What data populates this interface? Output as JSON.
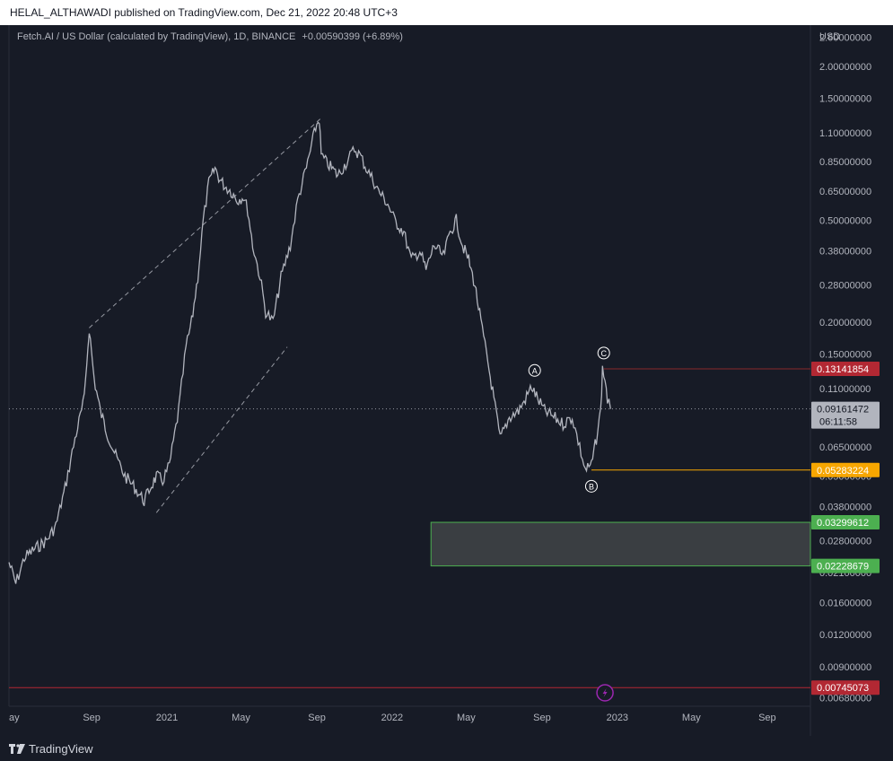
{
  "header": {
    "published_line": "HELAL_ALTHAWADI published on TradingView.com, Dec 21, 2022 20:48 UTC+3"
  },
  "legend": {
    "text": "Fetch.AI / US Dollar (calculated by TradingView), 1D, BINANCE",
    "change": "+0.00590399 (+6.89%)"
  },
  "footer": {
    "brand": "TradingView",
    "logo_icon": "tradingview-logo-icon"
  },
  "chart_data": {
    "type": "line",
    "title": "Fetch.AI / US Dollar (calculated by TradingView), 1D, BINANCE",
    "currency_label": "USD",
    "y_scale": "log",
    "ylim": [
      0.0063,
      2.9
    ],
    "y_ticks": [
      "2.60000000",
      "2.00000000",
      "1.50000000",
      "1.10000000",
      "0.85000000",
      "0.65000000",
      "0.50000000",
      "0.38000000",
      "0.28000000",
      "0.20000000",
      "0.15000000",
      "0.11000000",
      "0.08400000",
      "0.06500000",
      "0.05000000",
      "0.03800000",
      "0.02800000",
      "0.02100000",
      "0.01600000",
      "0.01200000",
      "0.00900000",
      "0.00680000"
    ],
    "x_ticks": [
      "May",
      "Sep",
      "2021",
      "May",
      "Sep",
      "2022",
      "May",
      "Sep",
      "2023",
      "May",
      "Sep"
    ],
    "x_ticks_first_label": "ay",
    "xlim": [
      "2020-04-20",
      "2023-11-10"
    ],
    "x_tick_dates": [
      "2020-05-01",
      "2020-09-01",
      "2021-01-01",
      "2021-05-01",
      "2021-09-01",
      "2022-01-01",
      "2022-05-01",
      "2022-09-01",
      "2023-01-01",
      "2023-05-01",
      "2023-09-01"
    ],
    "series": [
      {
        "x": [
          "2020-04-20",
          "2020-05-01",
          "2020-05-15",
          "2020-06-01",
          "2020-06-20",
          "2020-07-05",
          "2020-07-20",
          "2020-08-05",
          "2020-08-20",
          "2020-08-28",
          "2020-09-05",
          "2020-09-15",
          "2020-09-25",
          "2020-10-10",
          "2020-10-25",
          "2020-11-10",
          "2020-11-25",
          "2020-12-05",
          "2020-12-15",
          "2020-12-25",
          "2021-01-05",
          "2021-01-20",
          "2021-02-01",
          "2021-02-10",
          "2021-02-20",
          "2021-03-01",
          "2021-03-10",
          "2021-03-20",
          "2021-03-28",
          "2021-04-05",
          "2021-04-15",
          "2021-04-25",
          "2021-05-05",
          "2021-05-12",
          "2021-05-20",
          "2021-06-01",
          "2021-06-10",
          "2021-06-22",
          "2021-07-05",
          "2021-07-20",
          "2021-08-01",
          "2021-08-15",
          "2021-08-30",
          "2021-09-05",
          "2021-09-08",
          "2021-09-15",
          "2021-09-25",
          "2021-10-05",
          "2021-10-20",
          "2021-11-01",
          "2021-11-10",
          "2021-11-20",
          "2021-12-01",
          "2021-12-10",
          "2021-12-25",
          "2022-01-05",
          "2022-01-20",
          "2022-02-01",
          "2022-02-15",
          "2022-02-25",
          "2022-03-10",
          "2022-03-25",
          "2022-04-05",
          "2022-04-15",
          "2022-04-25",
          "2022-05-05",
          "2022-05-15",
          "2022-05-25",
          "2022-06-05",
          "2022-06-15",
          "2022-06-25",
          "2022-07-10",
          "2022-07-25",
          "2022-08-05",
          "2022-08-15",
          "2022-08-25",
          "2022-09-05",
          "2022-09-20",
          "2022-10-05",
          "2022-10-20",
          "2022-11-01",
          "2022-11-10",
          "2022-11-20",
          "2022-11-28",
          "2022-12-05",
          "2022-12-08",
          "2022-12-12",
          "2022-12-16",
          "2022-12-21"
        ],
        "values": [
          0.023,
          0.019,
          0.024,
          0.026,
          0.028,
          0.032,
          0.045,
          0.07,
          0.1,
          0.19,
          0.12,
          0.09,
          0.075,
          0.06,
          0.05,
          0.045,
          0.04,
          0.045,
          0.05,
          0.048,
          0.055,
          0.09,
          0.16,
          0.2,
          0.3,
          0.5,
          0.7,
          0.8,
          0.72,
          0.68,
          0.65,
          0.6,
          0.62,
          0.55,
          0.4,
          0.3,
          0.22,
          0.2,
          0.3,
          0.4,
          0.6,
          0.8,
          1.15,
          1.25,
          0.9,
          0.85,
          0.8,
          0.75,
          0.85,
          0.95,
          0.9,
          0.8,
          0.72,
          0.65,
          0.58,
          0.5,
          0.45,
          0.35,
          0.38,
          0.32,
          0.4,
          0.36,
          0.45,
          0.5,
          0.4,
          0.35,
          0.28,
          0.2,
          0.14,
          0.1,
          0.07,
          0.085,
          0.09,
          0.1,
          0.112,
          0.1,
          0.09,
          0.085,
          0.08,
          0.085,
          0.065,
          0.0528,
          0.055,
          0.07,
          0.09,
          0.131,
          0.12,
          0.1,
          0.0916
        ]
      }
    ],
    "trend_channel": {
      "upper": [
        [
          "2020-08-28",
          0.19
        ],
        [
          "2021-09-07",
          1.25
        ]
      ],
      "lower": [
        [
          "2020-12-15",
          0.036
        ],
        [
          "2021-07-15",
          0.16
        ]
      ]
    },
    "wave_labels": [
      {
        "label": "A",
        "x": "2022-08-20",
        "value": 0.112
      },
      {
        "label": "B",
        "x": "2022-11-20",
        "value": 0.0528
      },
      {
        "label": "C",
        "x": "2022-12-10",
        "value": 0.131
      }
    ],
    "horizontal_lines": [
      {
        "value": 0.13141854,
        "color": "#8a2a2a",
        "x_start": "2022-12-10"
      },
      {
        "value": 0.05283224,
        "color": "#f7a600",
        "x_start": "2022-11-20"
      },
      {
        "value": 0.00745073,
        "color": "#b22833",
        "x_start": "2020-04-20"
      },
      {
        "value": 0.09161472,
        "color": "#9598a1",
        "dotted": true,
        "x_start": "2020-04-20"
      }
    ],
    "zone": {
      "top": 0.03299612,
      "bottom": 0.02228679,
      "x_start": "2022-03-05",
      "fill": "#3a3e42",
      "border": "#4caf50"
    },
    "price_labels": [
      {
        "text": "0.13141854",
        "value": 0.13141854,
        "bg": "#b22833"
      },
      {
        "text": "0.09161472",
        "value": 0.09161472,
        "bg": "#b2b5be",
        "sub": "06:11:58"
      },
      {
        "text": "0.05283224",
        "value": 0.05283224,
        "bg": "#f7a600"
      },
      {
        "text": "0.03299612",
        "value": 0.03299612,
        "bg": "#4caf50"
      },
      {
        "text": "0.02228679",
        "value": 0.02228679,
        "bg": "#4caf50"
      },
      {
        "text": "0.00745073",
        "value": 0.00745073,
        "bg": "#b22833"
      }
    ],
    "flash_icon": {
      "name": "lightning-icon",
      "x": "2022-12-12",
      "color": "#9c27b0"
    }
  }
}
